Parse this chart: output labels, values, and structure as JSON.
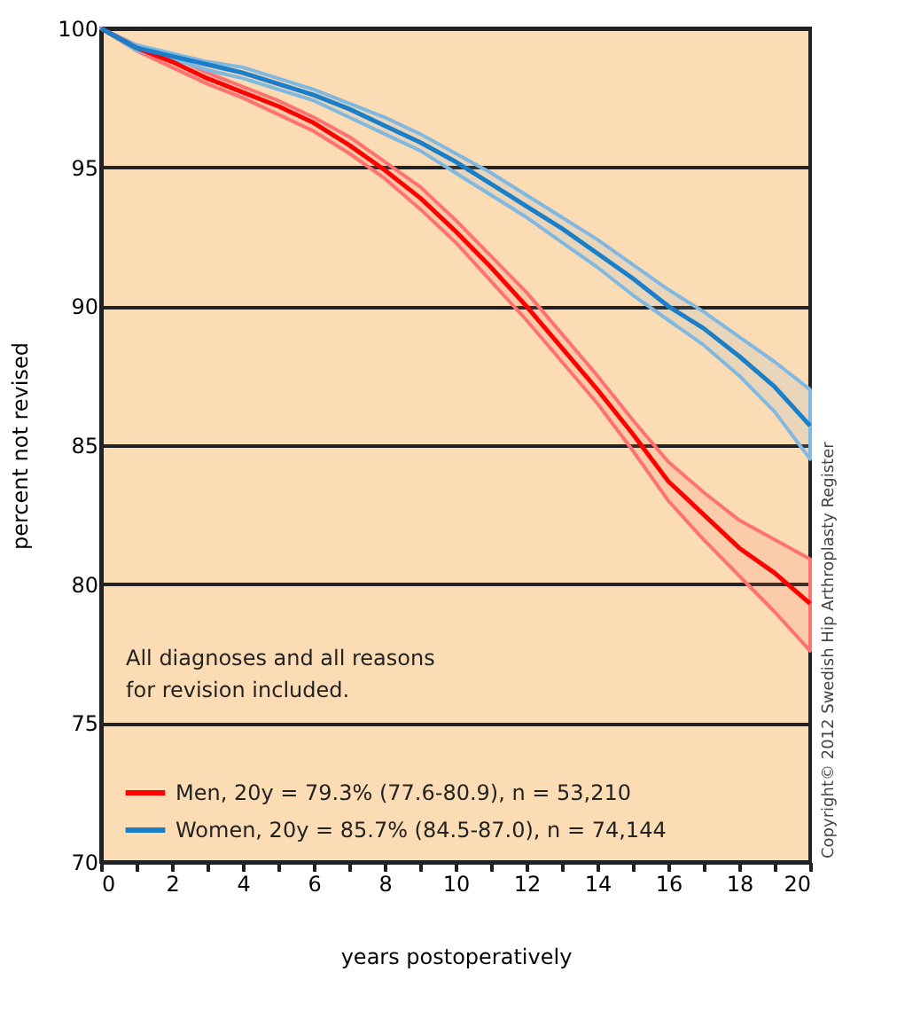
{
  "chart_data": {
    "type": "line",
    "xlabel": "years postoperatively",
    "ylabel": "percent not revised",
    "annotations": [
      "All diagnoses and all reasons\nfor revision included.",
      "Copyright© 2012 Swedish Hip Arthroplasty Register"
    ],
    "xlim": [
      0,
      20
    ],
    "ylim": [
      70,
      100
    ],
    "xticks": [
      0,
      {
        "value": 1,
        "label": null
      },
      2,
      {
        "value": 3,
        "label": null
      },
      4,
      {
        "value": 5,
        "label": null
      },
      6,
      {
        "value": 7,
        "label": null
      },
      8,
      {
        "value": 9,
        "label": null
      },
      10,
      {
        "value": 11,
        "label": null
      },
      12,
      {
        "value": 13,
        "label": null
      },
      14,
      {
        "value": 15,
        "label": null
      },
      16,
      {
        "value": 17,
        "label": null
      },
      18,
      {
        "value": 19,
        "label": null
      },
      20
    ],
    "yticks": [
      70,
      75,
      80,
      85,
      90,
      95,
      100
    ],
    "grid": "y",
    "legend": "bottom left",
    "marker": "none",
    "line_style": "solid",
    "x": [
      0,
      1,
      2,
      3,
      4,
      5,
      6,
      7,
      8,
      9,
      10,
      11,
      12,
      13,
      14,
      15,
      16,
      17,
      18,
      19,
      20
    ],
    "series": [
      {
        "name": "Men,      20y = 79.3% (77.6-80.9), n = 53,210",
        "color": "#ff0000",
        "values": [
          100,
          99.3,
          98.8,
          98.2,
          97.7,
          97.2,
          96.6,
          95.8,
          94.9,
          93.9,
          92.7,
          91.4,
          90.0,
          88.5,
          87.0,
          85.4,
          83.7,
          82.5,
          81.3,
          80.4,
          79.3
        ],
        "lower": [
          100,
          99.2,
          98.6,
          98.0,
          97.5,
          96.9,
          96.3,
          95.5,
          94.6,
          93.5,
          92.3,
          90.9,
          89.5,
          88.0,
          86.5,
          84.8,
          83.0,
          81.6,
          80.3,
          79.0,
          77.6
        ],
        "upper": [
          100,
          99.4,
          99.0,
          98.4,
          97.9,
          97.4,
          96.8,
          96.1,
          95.2,
          94.3,
          93.1,
          91.8,
          90.5,
          89.0,
          87.5,
          85.9,
          84.4,
          83.3,
          82.3,
          81.6,
          80.9
        ]
      },
      {
        "name": "Women, 20y = 85.7% (84.5-87.0), n = 74,144",
        "color": "#1a7ec8",
        "values": [
          100,
          99.3,
          99.0,
          98.7,
          98.4,
          98.0,
          97.6,
          97.1,
          96.5,
          95.9,
          95.2,
          94.4,
          93.6,
          92.8,
          91.9,
          91.0,
          90.0,
          89.2,
          88.2,
          87.1,
          85.7
        ],
        "lower": [
          100,
          99.2,
          98.9,
          98.5,
          98.2,
          97.8,
          97.4,
          96.8,
          96.2,
          95.6,
          94.8,
          94.0,
          93.2,
          92.3,
          91.4,
          90.4,
          89.5,
          88.6,
          87.5,
          86.2,
          84.5
        ],
        "upper": [
          100,
          99.4,
          99.1,
          98.8,
          98.6,
          98.2,
          97.8,
          97.3,
          96.8,
          96.2,
          95.5,
          94.8,
          94.0,
          93.2,
          92.4,
          91.5,
          90.6,
          89.8,
          88.9,
          88.0,
          87.0
        ]
      }
    ]
  }
}
